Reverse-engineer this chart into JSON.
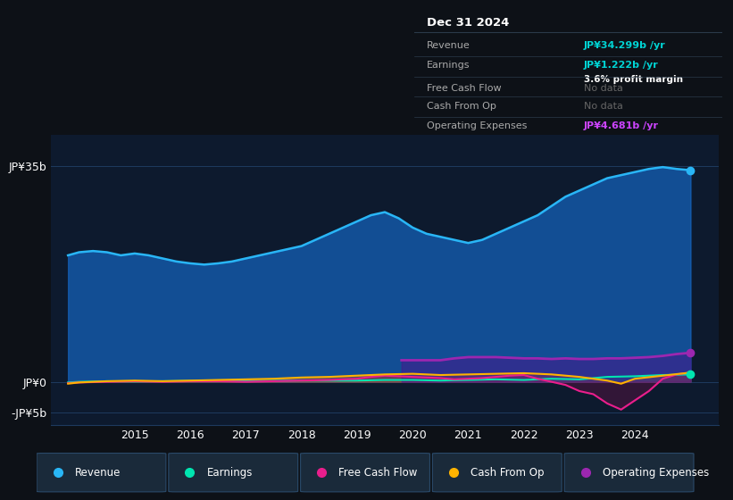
{
  "bg_color": "#0d1117",
  "plot_bg_color": "#0d1a2e",
  "grid_color": "#1e3a5f",
  "title_box": {
    "date": "Dec 31 2024",
    "rows": [
      {
        "label": "Revenue",
        "value": "JP¥34.299b /yr",
        "value_color": "#00d4d4",
        "note": null
      },
      {
        "label": "Earnings",
        "value": "JP¥1.222b /yr",
        "value_color": "#00d4d4",
        "note": "3.6% profit margin"
      },
      {
        "label": "Free Cash Flow",
        "value": "No data",
        "value_color": "#666666",
        "note": null
      },
      {
        "label": "Cash From Op",
        "value": "No data",
        "value_color": "#666666",
        "note": null
      },
      {
        "label": "Operating Expenses",
        "value": "JP¥4.681b /yr",
        "value_color": "#cc44ff",
        "note": null
      }
    ]
  },
  "yticks": [
    "JP¥35b",
    "JP¥0",
    "-JP¥5b"
  ],
  "ytick_values": [
    35,
    0,
    -5
  ],
  "ylim": [
    -7,
    40
  ],
  "xlim": [
    2013.5,
    2025.5
  ],
  "xticks": [
    2015,
    2016,
    2017,
    2018,
    2019,
    2020,
    2021,
    2022,
    2023,
    2024
  ],
  "revenue": {
    "x": [
      2013.8,
      2014.0,
      2014.25,
      2014.5,
      2014.75,
      2015.0,
      2015.25,
      2015.5,
      2015.75,
      2016.0,
      2016.25,
      2016.5,
      2016.75,
      2017.0,
      2017.25,
      2017.5,
      2017.75,
      2018.0,
      2018.25,
      2018.5,
      2018.75,
      2019.0,
      2019.25,
      2019.5,
      2019.75,
      2020.0,
      2020.25,
      2020.5,
      2020.75,
      2021.0,
      2021.25,
      2021.5,
      2021.75,
      2022.0,
      2022.25,
      2022.5,
      2022.75,
      2023.0,
      2023.25,
      2023.5,
      2023.75,
      2024.0,
      2024.25,
      2024.5,
      2024.75,
      2025.0
    ],
    "y": [
      20.5,
      21.0,
      21.2,
      21.0,
      20.5,
      20.8,
      20.5,
      20.0,
      19.5,
      19.2,
      19.0,
      19.2,
      19.5,
      20.0,
      20.5,
      21.0,
      21.5,
      22.0,
      23.0,
      24.0,
      25.0,
      26.0,
      27.0,
      27.5,
      26.5,
      25.0,
      24.0,
      23.5,
      23.0,
      22.5,
      23.0,
      24.0,
      25.0,
      26.0,
      27.0,
      28.5,
      30.0,
      31.0,
      32.0,
      33.0,
      33.5,
      34.0,
      34.5,
      34.8,
      34.5,
      34.3
    ],
    "color": "#29b6f6",
    "fill_color": "#1565c0",
    "fill_alpha": 0.7,
    "linewidth": 1.8
  },
  "earnings": {
    "x": [
      2013.8,
      2014.0,
      2014.5,
      2015.0,
      2015.5,
      2016.0,
      2016.5,
      2017.0,
      2017.5,
      2018.0,
      2018.5,
      2019.0,
      2019.5,
      2020.0,
      2020.5,
      2021.0,
      2021.5,
      2022.0,
      2022.5,
      2023.0,
      2023.5,
      2024.0,
      2024.5,
      2025.0
    ],
    "y": [
      -0.1,
      0.0,
      0.1,
      0.05,
      0.1,
      0.15,
      0.1,
      0.1,
      0.15,
      0.2,
      0.2,
      0.2,
      0.3,
      0.3,
      0.2,
      0.3,
      0.4,
      0.3,
      0.5,
      0.4,
      0.8,
      0.9,
      1.1,
      1.2
    ],
    "color": "#00e5b0",
    "fill_color": "#00897b",
    "fill_alpha": 0.3,
    "linewidth": 1.5
  },
  "free_cash_flow": {
    "x": [
      2013.8,
      2014.0,
      2014.5,
      2015.0,
      2015.5,
      2016.0,
      2016.5,
      2017.0,
      2017.5,
      2018.0,
      2018.5,
      2019.0,
      2019.25,
      2019.5,
      2019.75,
      2020.0,
      2020.25,
      2020.5,
      2020.75,
      2021.0,
      2021.25,
      2021.5,
      2021.75,
      2022.0,
      2022.25,
      2022.5,
      2022.75,
      2023.0,
      2023.25,
      2023.5,
      2023.75,
      2024.0,
      2024.25,
      2024.5,
      2024.75,
      2025.0
    ],
    "y": [
      -0.2,
      -0.1,
      0.0,
      0.1,
      0.0,
      0.1,
      0.1,
      0.0,
      0.1,
      0.2,
      0.3,
      0.5,
      0.8,
      1.0,
      0.9,
      0.8,
      0.7,
      0.6,
      0.4,
      0.5,
      0.6,
      0.8,
      1.0,
      1.1,
      0.5,
      0.0,
      -0.5,
      -1.5,
      -2.0,
      -3.5,
      -4.5,
      -3.0,
      -1.5,
      0.5,
      1.2,
      1.5
    ],
    "color": "#e91e8c",
    "fill_color": "#880e4f",
    "fill_alpha": 0.3,
    "linewidth": 1.5
  },
  "cash_from_op": {
    "x": [
      2013.8,
      2014.0,
      2014.5,
      2015.0,
      2015.5,
      2016.0,
      2016.5,
      2017.0,
      2017.5,
      2018.0,
      2018.5,
      2019.0,
      2019.5,
      2020.0,
      2020.5,
      2021.0,
      2021.5,
      2022.0,
      2022.5,
      2023.0,
      2023.25,
      2023.5,
      2023.75,
      2024.0,
      2024.5,
      2025.0
    ],
    "y": [
      -0.3,
      -0.1,
      0.1,
      0.2,
      0.1,
      0.2,
      0.3,
      0.4,
      0.5,
      0.7,
      0.8,
      1.0,
      1.2,
      1.3,
      1.1,
      1.2,
      1.3,
      1.4,
      1.2,
      0.8,
      0.5,
      0.2,
      -0.3,
      0.5,
      1.0,
      1.5
    ],
    "color": "#ffb300",
    "fill_color": "#e65100",
    "fill_alpha": 0.3,
    "linewidth": 1.5
  },
  "op_expenses": {
    "x": [
      2019.8,
      2020.0,
      2020.25,
      2020.5,
      2020.75,
      2021.0,
      2021.25,
      2021.5,
      2021.75,
      2022.0,
      2022.25,
      2022.5,
      2022.75,
      2023.0,
      2023.25,
      2023.5,
      2023.75,
      2024.0,
      2024.25,
      2024.5,
      2024.75,
      2025.0
    ],
    "y": [
      3.5,
      3.5,
      3.5,
      3.5,
      3.8,
      4.0,
      4.0,
      4.0,
      3.9,
      3.8,
      3.8,
      3.7,
      3.8,
      3.7,
      3.7,
      3.8,
      3.8,
      3.9,
      4.0,
      4.2,
      4.5,
      4.7
    ],
    "color": "#9c27b0",
    "fill_color": "#4a148c",
    "fill_alpha": 0.5,
    "linewidth": 2.0
  },
  "legend": [
    {
      "label": "Revenue",
      "color": "#29b6f6"
    },
    {
      "label": "Earnings",
      "color": "#00e5b0"
    },
    {
      "label": "Free Cash Flow",
      "color": "#e91e8c"
    },
    {
      "label": "Cash From Op",
      "color": "#ffb300"
    },
    {
      "label": "Operating Expenses",
      "color": "#9c27b0"
    }
  ]
}
